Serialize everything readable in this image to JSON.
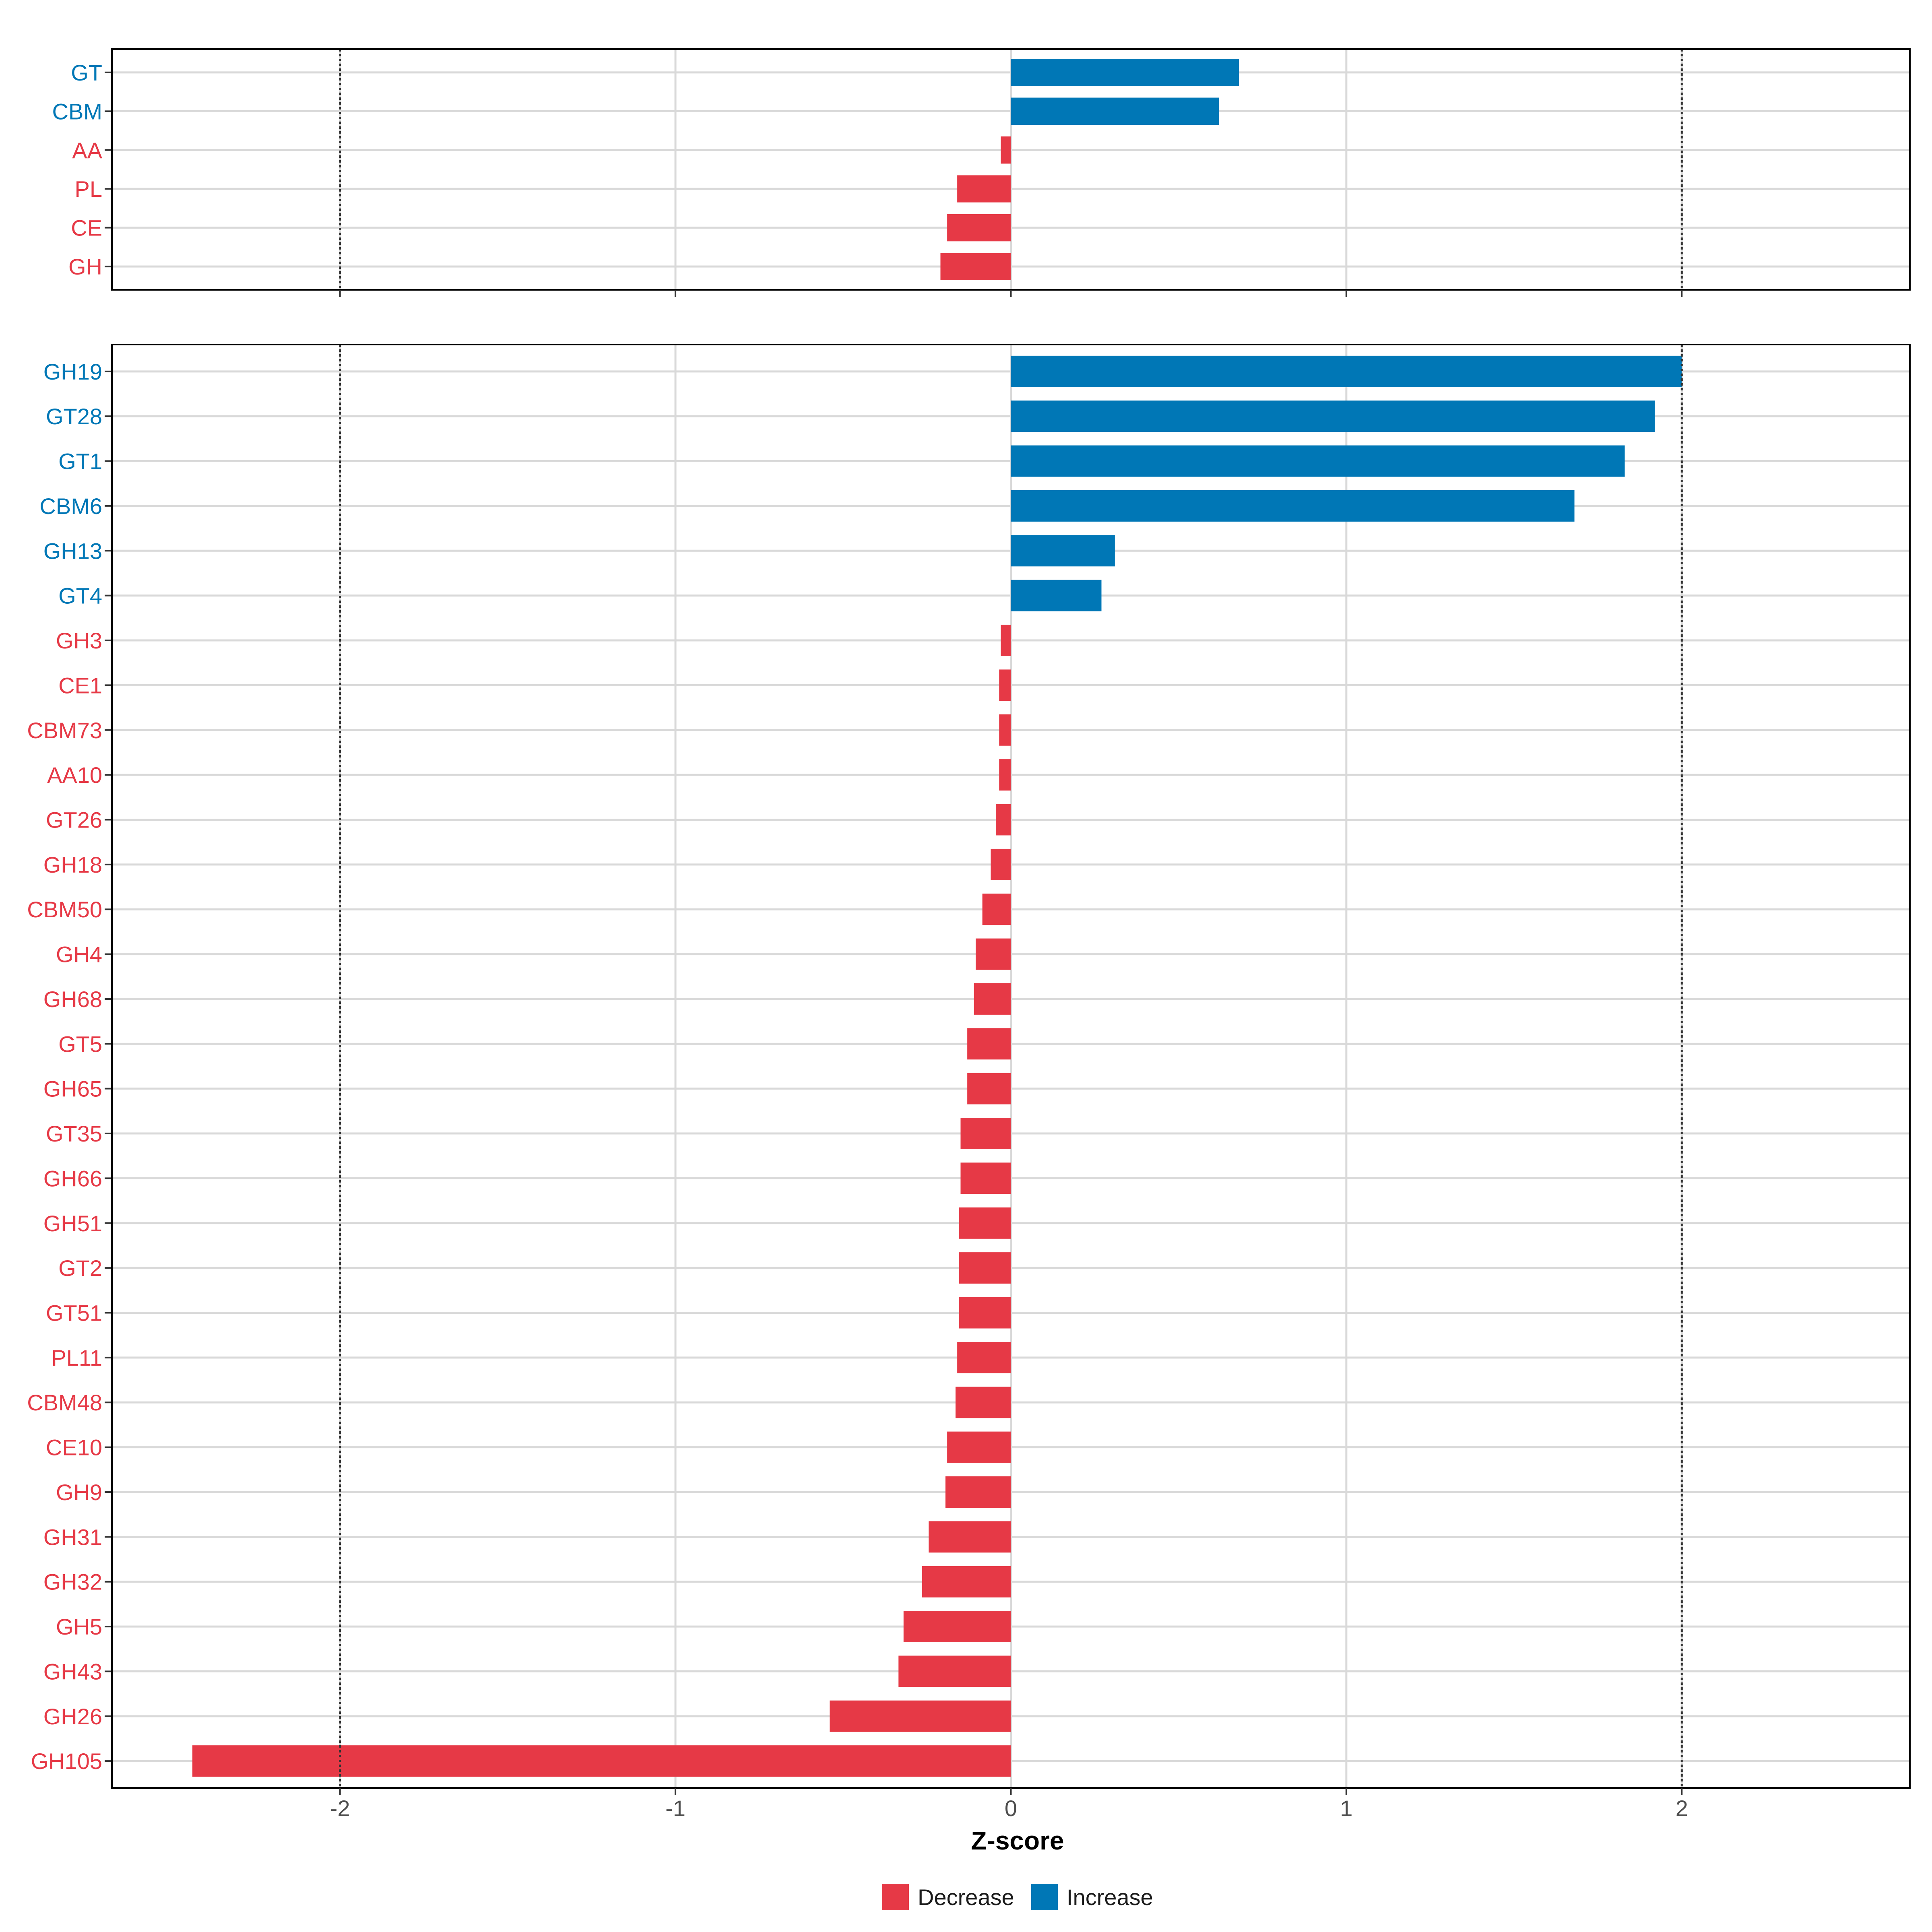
{
  "colors": {
    "decrease": "#E63946",
    "increase": "#0077B6",
    "grid": "#D9D9D9",
    "frame": "#000000",
    "ref": "#333333"
  },
  "chart_data": [
    {
      "type": "bar",
      "orientation": "horizontal",
      "panel": "top",
      "categories": [
        "GT",
        "CBM",
        "AA",
        "PL",
        "CE",
        "GH"
      ],
      "values": [
        0.68,
        0.62,
        -0.03,
        -0.16,
        -0.19,
        -0.21
      ],
      "xlim": [
        -2.68,
        2.68
      ],
      "reference_lines": [
        -2,
        2
      ]
    },
    {
      "type": "bar",
      "orientation": "horizontal",
      "panel": "bottom",
      "categories": [
        "GH19",
        "GT28",
        "GT1",
        "CBM6",
        "GH13",
        "GT4",
        "GH3",
        "CE1",
        "CBM73",
        "AA10",
        "GT26",
        "GH18",
        "CBM50",
        "GH4",
        "GH68",
        "GT5",
        "GH65",
        "GT35",
        "GH66",
        "GH51",
        "GT2",
        "GT51",
        "PL11",
        "CBM48",
        "CE10",
        "GH9",
        "GH31",
        "GH32",
        "GH5",
        "GH43",
        "GH26",
        "GH105"
      ],
      "values": [
        2.0,
        1.92,
        1.83,
        1.68,
        0.31,
        0.27,
        -0.03,
        -0.035,
        -0.035,
        -0.035,
        -0.045,
        -0.06,
        -0.085,
        -0.105,
        -0.11,
        -0.13,
        -0.13,
        -0.15,
        -0.15,
        -0.155,
        -0.155,
        -0.155,
        -0.16,
        -0.165,
        -0.19,
        -0.195,
        -0.245,
        -0.265,
        -0.32,
        -0.335,
        -0.54,
        -2.44
      ],
      "xlim": [
        -2.68,
        2.68
      ],
      "reference_lines": [
        -2,
        2
      ],
      "xticks": [
        -2,
        -1,
        0,
        1,
        2
      ],
      "xtick_labels": [
        "-2",
        "-1",
        "0",
        "1",
        "2"
      ],
      "xlabel": "Z-score"
    }
  ],
  "legend": {
    "items": [
      {
        "label": "Decrease",
        "key": "decrease"
      },
      {
        "label": "Increase",
        "key": "increase"
      }
    ]
  }
}
